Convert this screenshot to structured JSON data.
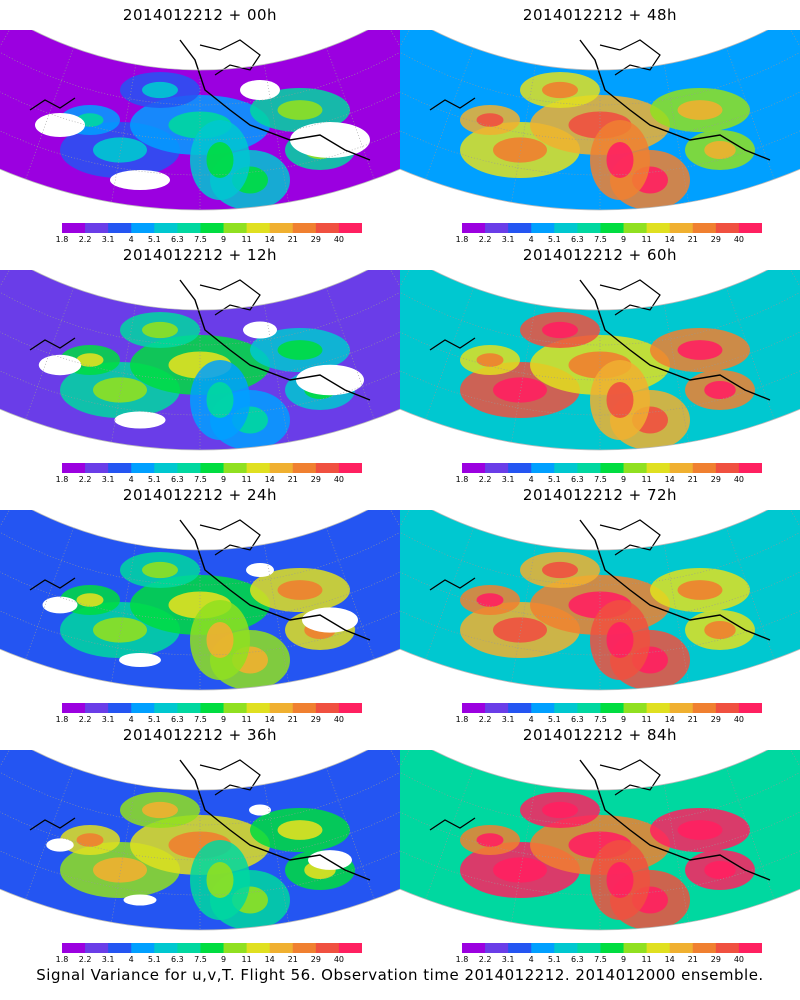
{
  "panels": [
    {
      "title": "2014012212 + 00h",
      "intensity": 0.0
    },
    {
      "title": "2014012212 + 48h",
      "intensity": 0.6
    },
    {
      "title": "2014012212 + 12h",
      "intensity": 0.15
    },
    {
      "title": "2014012212 + 60h",
      "intensity": 0.7
    },
    {
      "title": "2014012212 + 24h",
      "intensity": 0.3
    },
    {
      "title": "2014012212 + 72h",
      "intensity": 0.8
    },
    {
      "title": "2014012212 + 36h",
      "intensity": 0.45
    },
    {
      "title": "2014012212 + 84h",
      "intensity": 0.9
    }
  ],
  "colorbar": {
    "labels": [
      "1.8",
      "2.2",
      "3.1",
      "4",
      "5.1",
      "6.3",
      "7.5",
      "9",
      "11",
      "14",
      "21",
      "29",
      "40"
    ],
    "colors": [
      "#9b00e0",
      "#6a3de8",
      "#2455f2",
      "#00a0ff",
      "#00c8d0",
      "#00d8a0",
      "#00dd40",
      "#90e020",
      "#e0e020",
      "#f0b030",
      "#f08030",
      "#f05040",
      "#ff2060"
    ]
  },
  "caption": "Signal Variance for u,v,T. Flight 56. Observation time 2014012212. 2014012000 ensemble."
}
